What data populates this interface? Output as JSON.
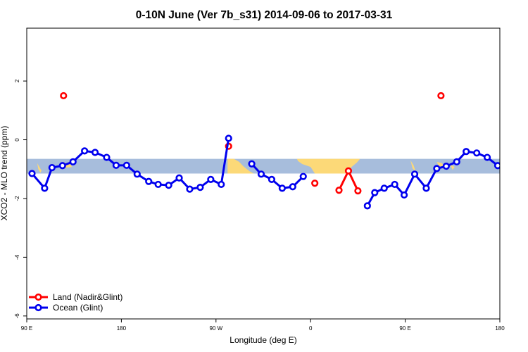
{
  "chart_data": {
    "type": "line",
    "title": "0-10N June (Ver 7b_s31)   2014-09-06 to 2017-03-31",
    "xlabel": "Longitude (deg E)",
    "ylabel": "XCO2 - MLO trend (ppm)",
    "x_ticks": [
      "90 E",
      "180",
      "90 W",
      "0",
      "90 E",
      "180"
    ],
    "y_ticks": [
      "2",
      "0",
      "-2",
      "-4",
      "-6"
    ],
    "y_tick_values": [
      2,
      0,
      -2,
      -4,
      -6
    ],
    "x_tick_positions": [
      90,
      180,
      270,
      360,
      450,
      540
    ],
    "xlim": [
      90,
      540
    ],
    "ylim": [
      -6.1,
      3.8
    ],
    "map_band": {
      "ymin": -1.15,
      "ymax": -0.65,
      "ocean_color": "#a7bddc",
      "land_color": "#fcd978"
    },
    "legend_position": "bottom-left",
    "series": [
      {
        "name": "Land (Nadir&Glint)",
        "color": "#ff0000",
        "segments": [
          [
            [
              125,
              1.5
            ]
          ],
          [
            [
              282,
              -0.22
            ]
          ],
          [
            [
              364,
              -1.48
            ]
          ],
          [
            [
              387,
              -1.72
            ],
            [
              396,
              -1.06
            ],
            [
              405,
              -1.74
            ]
          ],
          [
            [
              484,
              1.5
            ]
          ]
        ]
      },
      {
        "name": "Ocean (Glint)",
        "color": "#0000ee",
        "segments": [
          [
            [
              95,
              -1.15
            ],
            [
              107,
              -1.65
            ],
            [
              114,
              -0.95
            ],
            [
              124,
              -0.88
            ],
            [
              134,
              -0.75
            ],
            [
              145,
              -0.38
            ],
            [
              155,
              -0.43
            ],
            [
              166,
              -0.6
            ],
            [
              175,
              -0.87
            ],
            [
              185,
              -0.87
            ],
            [
              195,
              -1.17
            ],
            [
              206,
              -1.42
            ],
            [
              215,
              -1.52
            ],
            [
              225,
              -1.55
            ],
            [
              235,
              -1.3
            ],
            [
              245,
              -1.68
            ],
            [
              255,
              -1.62
            ],
            [
              265,
              -1.35
            ],
            [
              275,
              -1.52
            ],
            [
              282,
              0.05
            ]
          ],
          [
            [
              304,
              -0.82
            ],
            [
              313,
              -1.17
            ],
            [
              323,
              -1.35
            ],
            [
              333,
              -1.65
            ],
            [
              343,
              -1.6
            ],
            [
              353,
              -1.25
            ]
          ],
          [
            [
              414,
              -2.25
            ],
            [
              421,
              -1.8
            ],
            [
              430,
              -1.65
            ],
            [
              440,
              -1.52
            ],
            [
              449,
              -1.88
            ],
            [
              459,
              -1.17
            ],
            [
              470,
              -1.65
            ],
            [
              480,
              -0.98
            ],
            [
              489,
              -0.9
            ],
            [
              499,
              -0.75
            ],
            [
              508,
              -0.4
            ],
            [
              518,
              -0.45
            ],
            [
              528,
              -0.6
            ],
            [
              538,
              -0.88
            ]
          ]
        ]
      }
    ]
  }
}
